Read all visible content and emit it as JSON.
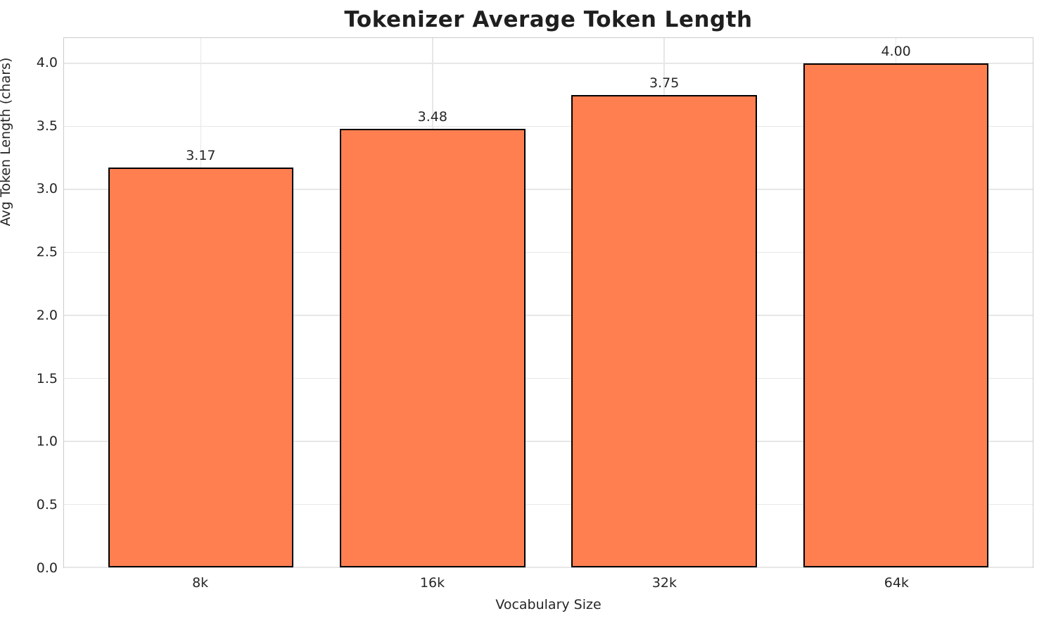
{
  "chart_data": {
    "type": "bar",
    "title": "Tokenizer Average Token Length",
    "xlabel": "Vocabulary Size",
    "ylabel": "Avg Token Length (chars)",
    "categories": [
      "8k",
      "16k",
      "32k",
      "64k"
    ],
    "values": [
      3.17,
      3.48,
      3.75,
      4.0
    ],
    "value_labels": [
      "3.17",
      "3.48",
      "3.75",
      "4.00"
    ],
    "ytick_labels": [
      "0.0",
      "0.5",
      "1.0",
      "1.5",
      "2.0",
      "2.5",
      "3.0",
      "3.5",
      "4.0"
    ],
    "ytick_values": [
      0,
      0.5,
      1,
      1.5,
      2,
      2.5,
      3,
      3.5,
      4
    ],
    "ylim": [
      0,
      4.2
    ],
    "xlim": [
      -0.59,
      3.59
    ],
    "bar_width_units": 0.8,
    "grid": "on",
    "legend": "none",
    "bar_color": "#FF7F50",
    "bar_edge_color": "#000000",
    "grid_color": "#e7e7e7",
    "spine_color": "#cccccc",
    "text_color": "#262626",
    "title_color": "#1f1f1f"
  }
}
